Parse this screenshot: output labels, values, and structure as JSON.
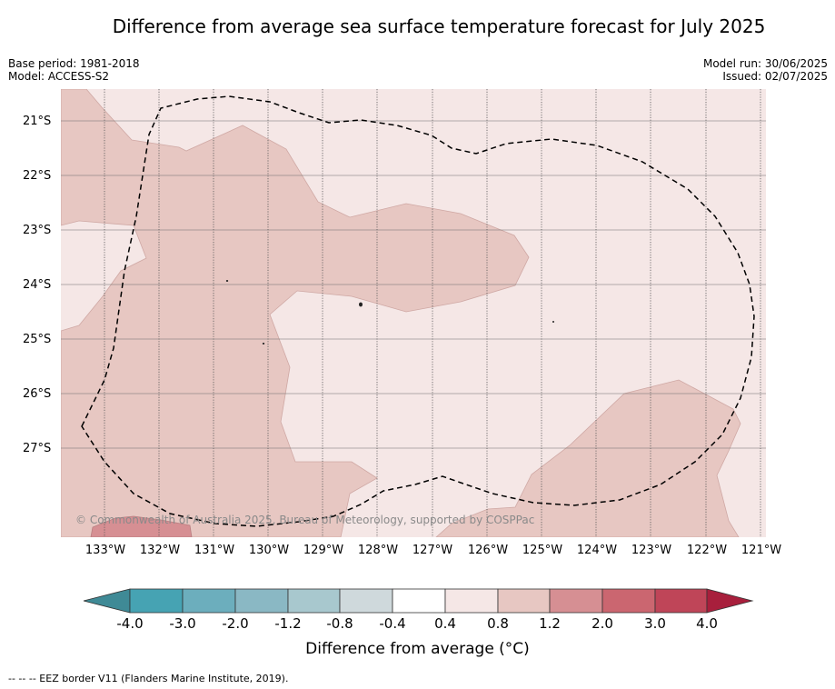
{
  "title": "Difference from average sea surface temperature forecast for July 2025",
  "base_period": "Base period: 1981-2018",
  "model": "Model: ACCESS-S2",
  "model_run": "Model run: 30/06/2025",
  "issued": "Issued: 02/07/2025",
  "copyright": "© Commonwealth of Australia 2025, Bureau of Meteorology, supported by COSPPac",
  "latitude_labels": [
    "21°S",
    "22°S",
    "23°S",
    "24°S",
    "25°S",
    "26°S",
    "27°S"
  ],
  "longitude_labels": [
    "133°W",
    "132°W",
    "131°W",
    "130°W",
    "129°W",
    "128°W",
    "127°W",
    "126°W",
    "125°W",
    "124°W",
    "123°W",
    "122°W",
    "121°W"
  ],
  "colorbar": {
    "title": "Difference from average (°C)",
    "tick_labels": [
      "-4.0",
      "-3.0",
      "-2.0",
      "-1.2",
      "-0.8",
      "-0.4",
      "0.4",
      "0.8",
      "1.2",
      "2.0",
      "3.0",
      "4.0"
    ],
    "colors": [
      "#3f8a96",
      "#46a3b3",
      "#6caebd",
      "#8ab8c4",
      "#a8c8ce",
      "#cfd9dc",
      "#ffffff",
      "#f5e7e6",
      "#e7c7c2",
      "#d68f93",
      "#cb6670",
      "#bf4558",
      "#a81f3c"
    ]
  },
  "footer": "--  --  -- EEZ border V11 (Flanders Marine Institute, 2019)."
}
